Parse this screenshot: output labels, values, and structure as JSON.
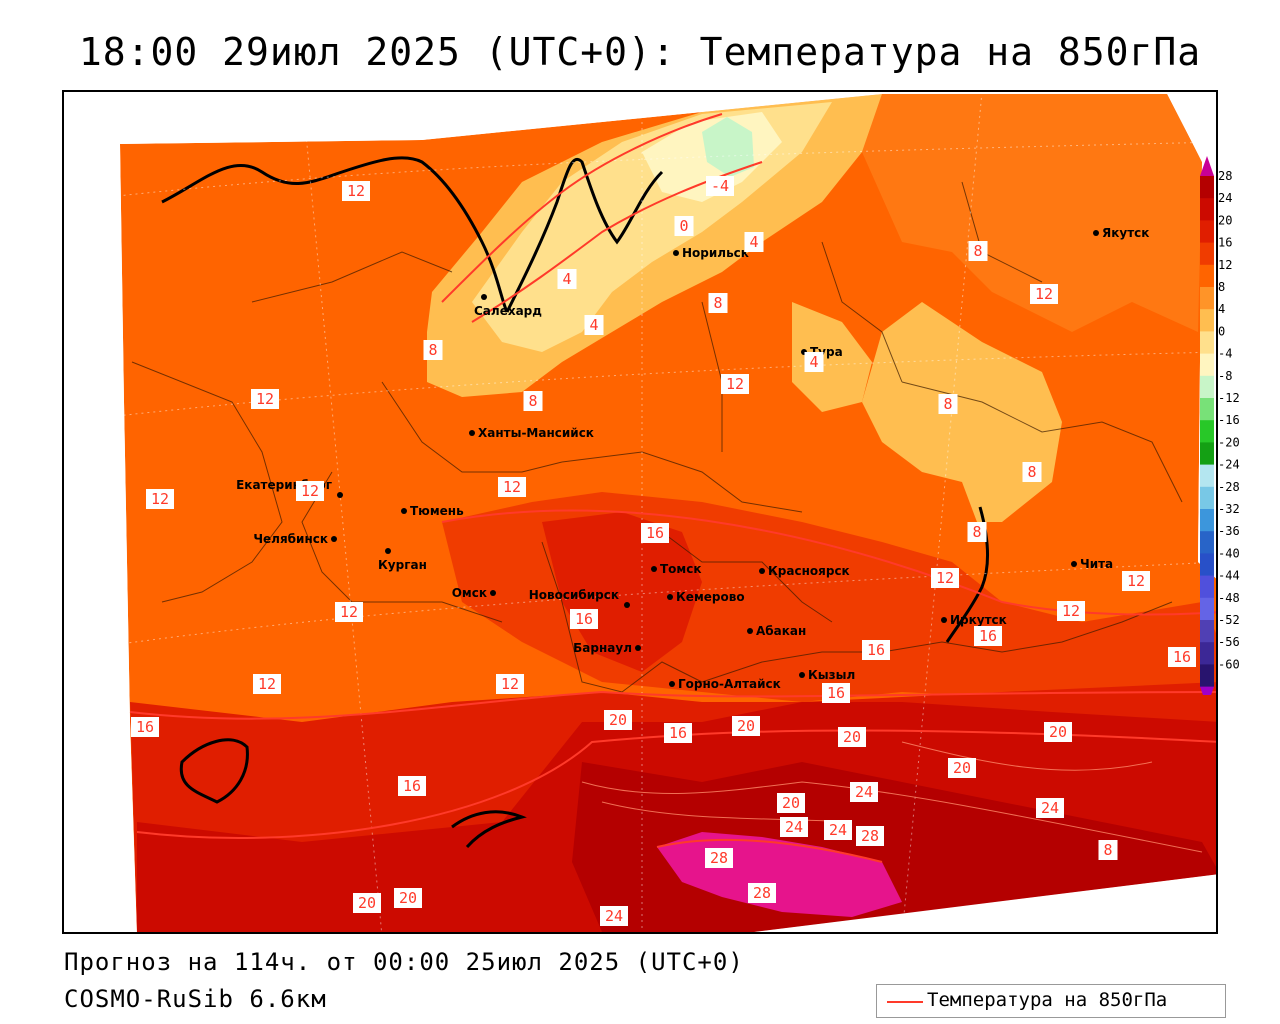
{
  "header": {
    "title": "18:00 29июл 2025 (UTC+0): Температура на 850гПа"
  },
  "footer": {
    "forecast": "Прогноз на 114ч. от 00:00 25июл 2025 (UTC+0)",
    "model": "COSMO-RuSib 6.6км"
  },
  "legend": {
    "line_label": "Температура на 850гПа",
    "line_color": "#ff3a2a"
  },
  "colorbar": {
    "ticks": [
      "28",
      "24",
      "20",
      "16",
      "12",
      "8",
      "4",
      "0",
      "-4",
      "-8",
      "-12",
      "-16",
      "-20",
      "-24",
      "-28",
      "-32",
      "-36",
      "-40",
      "-44",
      "-48",
      "-52",
      "-56",
      "-60"
    ],
    "colors": [
      "#b40000",
      "#cc0a00",
      "#e01e00",
      "#f03c00",
      "#ff6400",
      "#ff9428",
      "#ffbe50",
      "#ffe08c",
      "#fff5c0",
      "#c8f5c8",
      "#78e178",
      "#28c828",
      "#14a014",
      "#b4e6f0",
      "#78c8e6",
      "#3c96dc",
      "#2864c8",
      "#2850c8",
      "#5050dc",
      "#6464e6",
      "#5040b4",
      "#3c2896",
      "#28146e"
    ],
    "top_arrow_color": "#c80096",
    "bottom_arrow_color": "#a000c8"
  },
  "cities": [
    {
      "name": "Якутск"
    },
    {
      "name": "Норильск"
    },
    {
      "name": "Салехард"
    },
    {
      "name": "Тура"
    },
    {
      "name": "Ханты-Мансийск"
    },
    {
      "name": "Екатеринбург"
    },
    {
      "name": "Тюмень"
    },
    {
      "name": "Челябинск"
    },
    {
      "name": "Курган"
    },
    {
      "name": "Омск"
    },
    {
      "name": "Новосибирск"
    },
    {
      "name": "Томск"
    },
    {
      "name": "Кемерово"
    },
    {
      "name": "Красноярск"
    },
    {
      "name": "Абакан"
    },
    {
      "name": "Барнаул"
    },
    {
      "name": "Горно-Алтайск"
    },
    {
      "name": "Кызыл"
    },
    {
      "name": "Иркутск"
    },
    {
      "name": "Чита"
    }
  ],
  "isotherm_labels": [
    "12",
    "-4",
    "0",
    "4",
    "4",
    "4",
    "4",
    "8",
    "8",
    "8",
    "8",
    "12",
    "12",
    "12",
    "12",
    "12",
    "12",
    "12",
    "12",
    "12",
    "12",
    "12",
    "12",
    "16",
    "16",
    "16",
    "16",
    "16",
    "16",
    "16",
    "16",
    "16",
    "20",
    "20",
    "20",
    "20",
    "20",
    "20",
    "20",
    "20",
    "24",
    "24",
    "24",
    "24",
    "24",
    "28",
    "28",
    "28",
    "8",
    "8",
    "8",
    "8"
  ]
}
